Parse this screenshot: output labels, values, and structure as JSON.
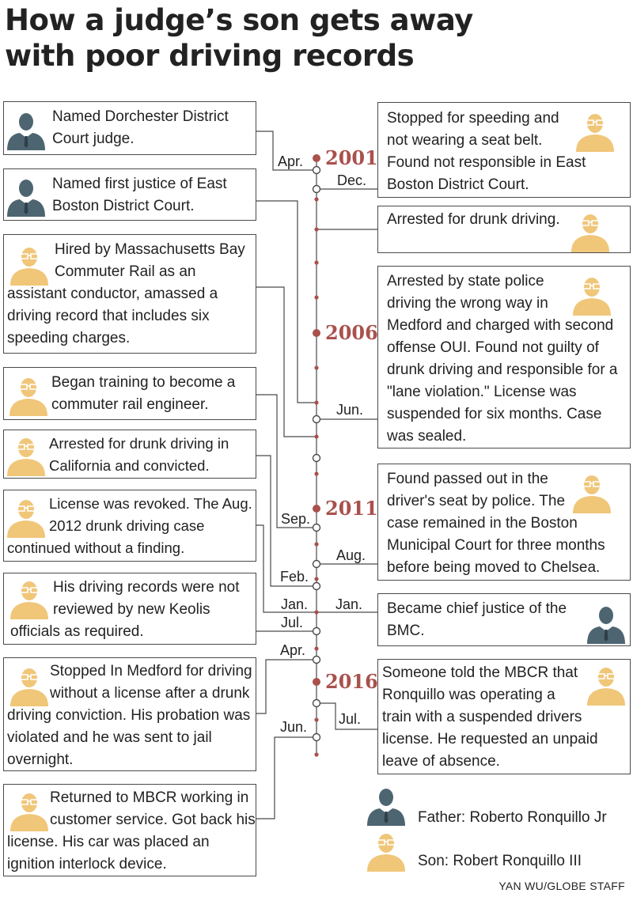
{
  "title": {
    "line1": "How a judge’s son gets away",
    "line2": "with poor driving records"
  },
  "years": {
    "y2001": "2001",
    "y2006": "2006",
    "y2011": "2011",
    "y2016": "2016"
  },
  "events": {
    "e1": "Named Dorchester District Court judge.",
    "e2": "Named first justice of East Boston District Court.",
    "e3": "Hired by Massachusetts Bay Commuter Rail as an assistant conductor, amassed a driving record that includes six speeding charges.",
    "e4": "Began training to become a commuter rail engineer.",
    "e5": "Arrested for drunk driving in California and convicted.",
    "e6": "License was revoked. The Aug. 2012 drunk driving case continued without a finding.",
    "e7": "His driving records were not reviewed by new Keolis officials as required.",
    "e8": "Stopped In Medford for driving without a license after a drunk driving conviction. His probation was violated and he was sent to jail overnight.",
    "e9": "Returned to MBCR working in customer service. Got back his license. His car was placed an ignition interlock device.",
    "r1": "Stopped for speeding and not wearing a seat belt. Found not responsible in East Boston District Court.",
    "r2": "Arrested for drunk driving.",
    "r3": "Arrested by state police driving the wrong way in Medford and charged with second offense OUI. Found not guilty of drunk driving and responsible for a \"lane violation.\" License was suspended for six months. Case was sealed.",
    "r4": "Found passed out in the driver's seat by police. The case remained in the Boston Municipal Court for three months before being moved to Chelsea.",
    "r5": "Became chief justice of the BMC.",
    "r6": "Someone told the MBCR that Ronquillo was operating a train with a suspended drivers license. He requested an unpaid leave of absence."
  },
  "months": {
    "m_apr1": "Apr.",
    "m_dec": "Dec.",
    "m_jun1": "Jun.",
    "m_sep": "Sep.",
    "m_aug": "Aug.",
    "m_feb": "Feb.",
    "m_jan_l": "Jan.",
    "m_jan_r": "Jan.",
    "m_jul1": "Jul.",
    "m_apr2": "Apr.",
    "m_jul2": "Jul.",
    "m_jun2": "Jun."
  },
  "legend": {
    "father": "Father: Roberto Ronquillo Jr",
    "son": "Son: Robert Ronquillo III"
  },
  "credit": "YAN WU/GLOBE STAFF",
  "icons": {
    "father": "father-judge-icon",
    "son": "son-glasses-icon"
  },
  "colors": {
    "father": "#4d6571",
    "son": "#f0c679",
    "accent": "#a9514d",
    "line": "#4a4a4a"
  }
}
